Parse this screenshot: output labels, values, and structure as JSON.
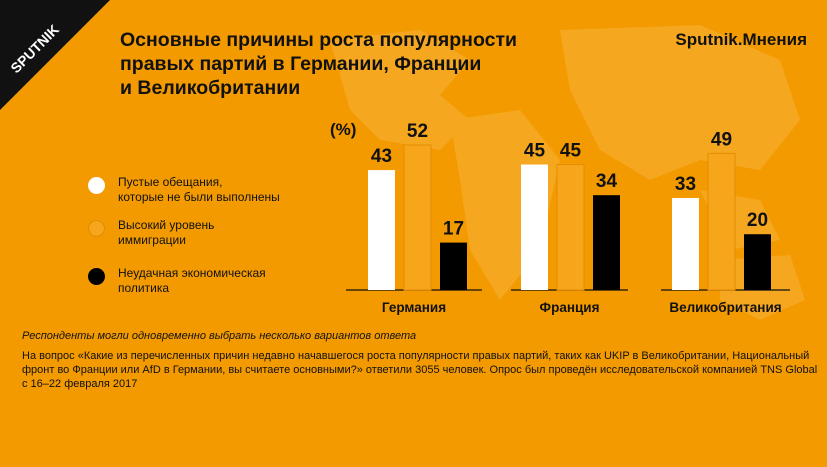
{
  "brand": {
    "logo_text": "SPUTNIK",
    "name": "Sputnik.Мнения"
  },
  "title_lines": [
    "Основные причины роста популярности",
    "правых партий в Германии, Франции",
    "и Великобритании"
  ],
  "unit": "(%)",
  "legend": [
    {
      "lines": [
        "Пустые обещания,",
        "которые не были выполнены"
      ],
      "color": "#ffffff"
    },
    {
      "lines": [
        "Высокий уровень",
        "иммиграции"
      ],
      "color": "#f39a00"
    },
    {
      "lines": [
        "Неудачная экономическая",
        "политика"
      ],
      "color": "#000000"
    }
  ],
  "note": "Респонденты могли одновременно выбрать несколько вариантов ответа",
  "footnote_lines": [
    "На вопрос «Какие из перечисленных причин недавно начавшегося роста популярности правых партий, таких как UKIP в Великобритании, Национальный",
    "фронт во Франции или AfD в Германии, вы считаете основными?» ответили 3055 человек. Опрос был проведён исследовательской компанией TNS Global",
    "с 16–22 февраля 2017"
  ],
  "chart_data": {
    "type": "bar",
    "categories": [
      "Германия",
      "Франция",
      "Великобритания"
    ],
    "series": [
      {
        "name": "Пустые обещания, которые не были выполнены",
        "values": [
          43,
          45,
          33
        ],
        "color": "#ffffff"
      },
      {
        "name": "Высокий уровень иммиграции",
        "values": [
          52,
          45,
          49
        ],
        "color": "#f39a00"
      },
      {
        "name": "Неудачная экономическая политика",
        "values": [
          17,
          34,
          20
        ],
        "color": "#000000"
      }
    ],
    "ylabel": "(%)",
    "ylim": [
      0,
      52
    ],
    "legend": "left",
    "grid": false
  }
}
